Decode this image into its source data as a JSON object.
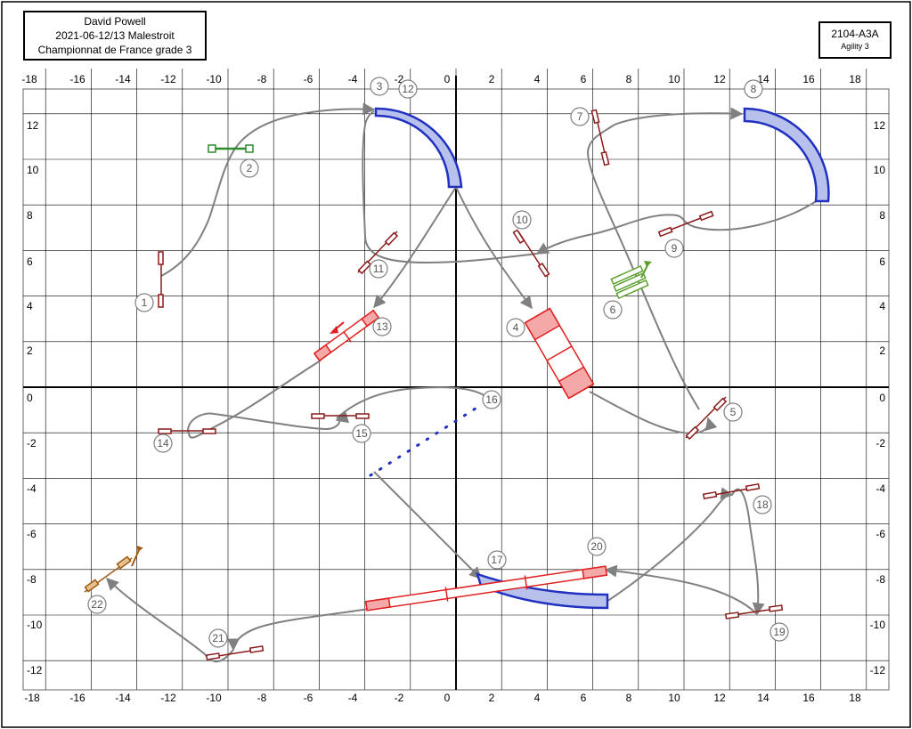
{
  "header": {
    "judge": "David Powell",
    "event": "2021-06-12/13 Malestroit",
    "competition": "Championnat de France grade 3"
  },
  "course_id": {
    "code": "2104-A3A",
    "level": "Agility 3"
  },
  "grid": {
    "x_ticks": [
      "-18",
      "-16",
      "-14",
      "-12",
      "-10",
      "-8",
      "-6",
      "-4",
      "-2",
      "0",
      "2",
      "4",
      "6",
      "8",
      "10",
      "12",
      "14",
      "16",
      "18"
    ],
    "y_ticks": [
      "12",
      "10",
      "8",
      "6",
      "4",
      "2",
      "0",
      "-2",
      "-4",
      "-6",
      "-8",
      "-10",
      "-12"
    ]
  },
  "obstacle_numbers": [
    "1",
    "2",
    "3",
    "4",
    "5",
    "6",
    "7",
    "8",
    "9",
    "10",
    "11",
    "12",
    "13",
    "14",
    "15",
    "16",
    "17",
    "18",
    "19",
    "20",
    "21",
    "22"
  ],
  "colors": {
    "jump": "#8b1a1a",
    "start_jump": "#2e8b2e",
    "tunnel": "#2030c0",
    "tunnel_fill": "#b8c0ec",
    "contact": "#e02020",
    "contact_fill": "#f4a8a8",
    "weave": "#5aa02a",
    "tyre": "#a05a10",
    "path": "#808080"
  }
}
